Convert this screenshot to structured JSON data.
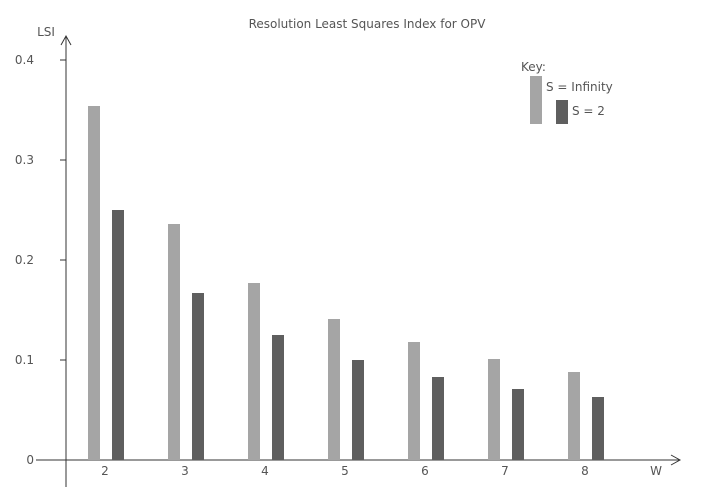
{
  "chart_data": {
    "type": "bar",
    "title": "Resolution Least Squares Index for OPV",
    "xlabel": "W",
    "ylabel": "LSI",
    "categories": [
      "2",
      "3",
      "4",
      "5",
      "6",
      "7",
      "8"
    ],
    "ylim": [
      0,
      0.4
    ],
    "yticks": [
      0,
      0.1,
      0.2,
      0.3,
      0.4
    ],
    "ytick_labels": [
      "0",
      "0.1",
      "0.2",
      "0.3",
      "0.4"
    ],
    "legend_title": "Key:",
    "legend_position": "top-right",
    "grid": false,
    "series": [
      {
        "name": "S = Infinity",
        "color": "#a5a5a5",
        "values": [
          0.354,
          0.236,
          0.177,
          0.141,
          0.118,
          0.101,
          0.088
        ]
      },
      {
        "name": "S = 2",
        "color": "#5f5f5f",
        "values": [
          0.25,
          0.167,
          0.125,
          0.1,
          0.083,
          0.071,
          0.063
        ]
      }
    ]
  }
}
